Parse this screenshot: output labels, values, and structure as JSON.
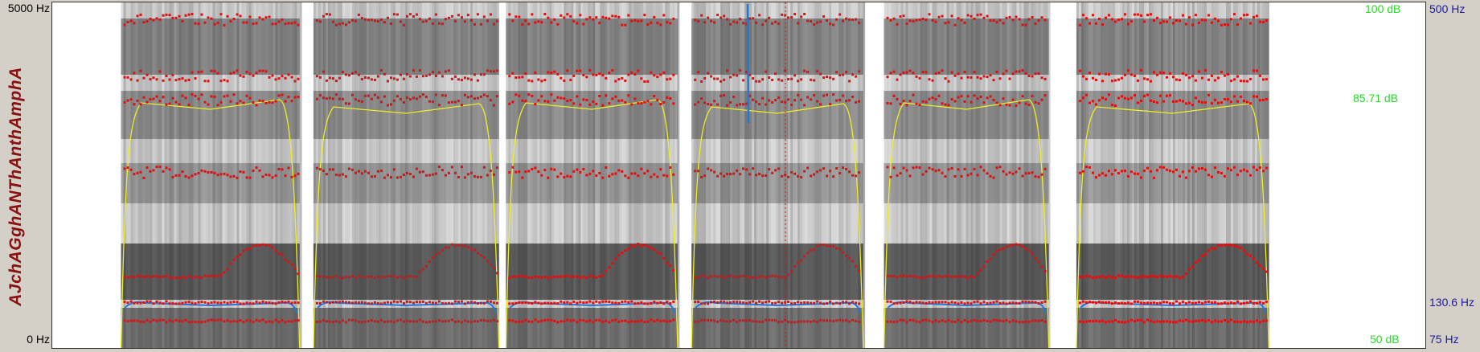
{
  "tier_label": "AJchAGghANThAnthAmphA",
  "left_axis": {
    "top": "5000 Hz",
    "bottom": "0 Hz"
  },
  "right_axis": {
    "intensity": {
      "top": "100 dB",
      "mid": "85.71 dB",
      "bottom": "50 dB"
    },
    "pitch": {
      "top": "500 Hz",
      "mid": "130.6 Hz",
      "bottom": "75 Hz"
    }
  },
  "colors": {
    "formant": "#dd1111",
    "pitch": "#1e78e0",
    "intensity": "#eeee22",
    "spectrogram": "#000000",
    "db_label": "#22dd22",
    "hz_label": "#1a1aa0",
    "tier_label": "#8b1010"
  },
  "segments": [
    {
      "start": 0.05,
      "end": 0.18
    },
    {
      "start": 0.19,
      "end": 0.325
    },
    {
      "start": 0.33,
      "end": 0.455
    },
    {
      "start": 0.465,
      "end": 0.59
    },
    {
      "start": 0.605,
      "end": 0.725
    },
    {
      "start": 0.745,
      "end": 0.885
    }
  ]
}
